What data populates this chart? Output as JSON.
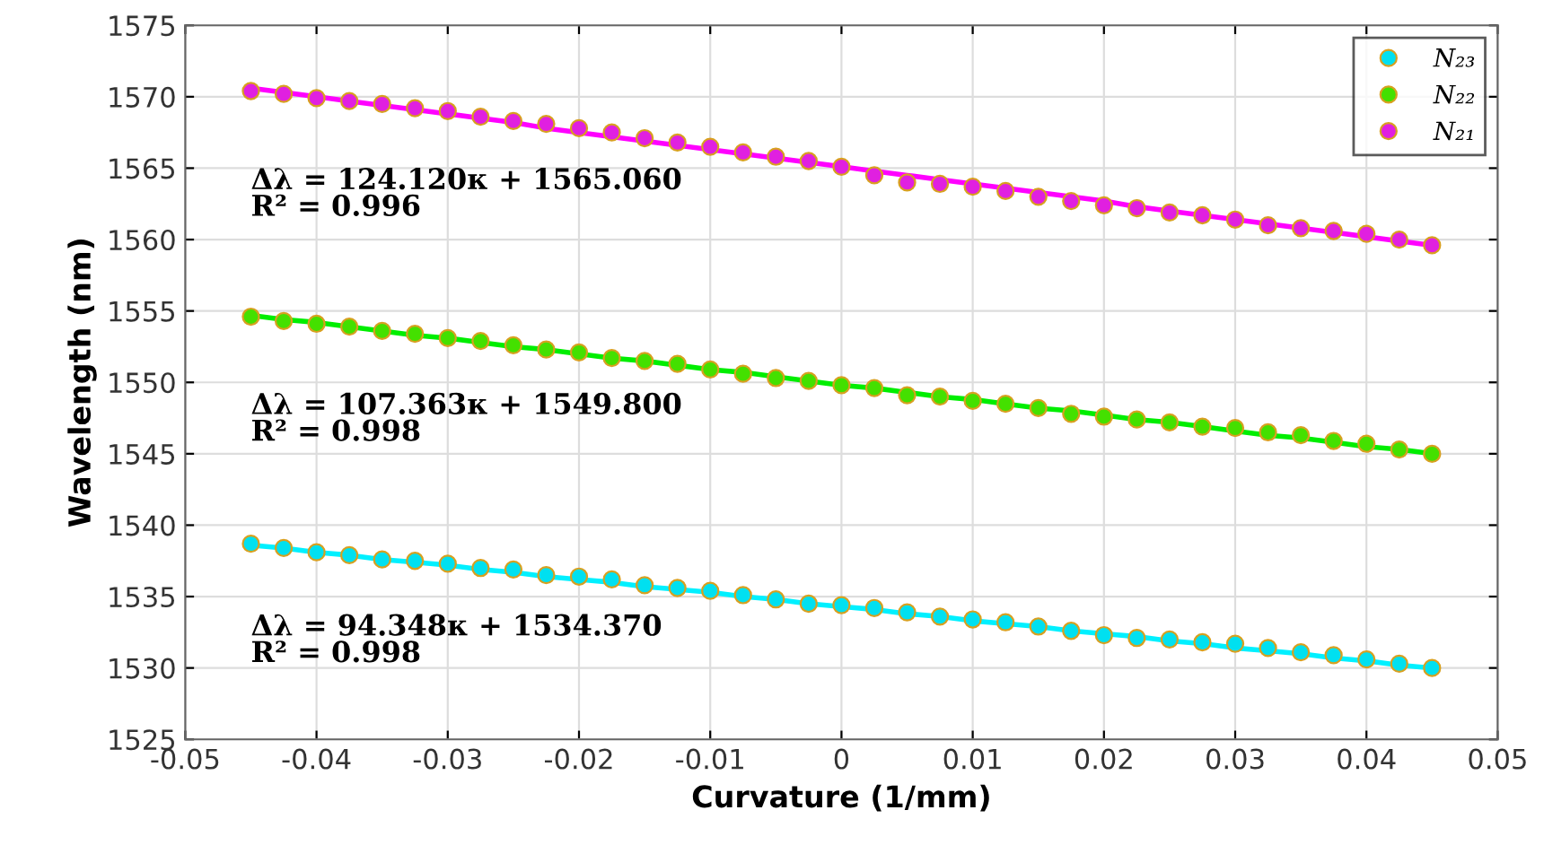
{
  "chart_data": {
    "type": "scatter",
    "xlabel": "Curvature (1/mm)",
    "ylabel": "Wavelength (nm)",
    "xlim": [
      -0.05,
      0.05
    ],
    "xticks": [
      -0.05,
      -0.04,
      -0.03,
      -0.02,
      -0.01,
      0,
      0.01,
      0.02,
      0.03,
      0.04,
      0.05
    ],
    "ylim": [
      1525,
      1575
    ],
    "yticks": [
      1525,
      1530,
      1535,
      1540,
      1545,
      1550,
      1555,
      1560,
      1565,
      1570,
      1575
    ],
    "grid": true,
    "legend": "top right",
    "x": [
      -0.045,
      -0.0425,
      -0.04,
      -0.0375,
      -0.035,
      -0.0325,
      -0.03,
      -0.0275,
      -0.025,
      -0.0225,
      -0.02,
      -0.0175,
      -0.015,
      -0.0125,
      -0.01,
      -0.0075,
      -0.005,
      -0.0025,
      0,
      0.0025,
      0.005,
      0.0075,
      0.01,
      0.0125,
      0.015,
      0.0175,
      0.02,
      0.0225,
      0.025,
      0.0275,
      0.03,
      0.0325,
      0.035,
      0.0375,
      0.04,
      0.0425,
      0.045
    ],
    "series": [
      {
        "name": "N₂₃",
        "color": "#00e0f0",
        "marker": "circle",
        "values": [
          1538.7,
          1538.4,
          1538.1,
          1537.9,
          1537.6,
          1537.5,
          1537.3,
          1537.0,
          1536.9,
          1536.5,
          1536.4,
          1536.2,
          1535.8,
          1535.6,
          1535.4,
          1535.1,
          1534.8,
          1534.5,
          1534.4,
          1534.2,
          1533.9,
          1533.6,
          1533.4,
          1533.2,
          1532.9,
          1532.6,
          1532.3,
          1532.1,
          1532.0,
          1531.8,
          1531.7,
          1531.4,
          1531.1,
          1530.9,
          1530.6,
          1530.3,
          1530.0
        ]
      },
      {
        "name": "N₂₂",
        "color": "#44e000",
        "marker": "circle",
        "values": [
          1554.6,
          1554.3,
          1554.1,
          1553.9,
          1553.6,
          1553.4,
          1553.1,
          1552.9,
          1552.6,
          1552.3,
          1552.1,
          1551.7,
          1551.5,
          1551.3,
          1550.9,
          1550.6,
          1550.3,
          1550.1,
          1549.8,
          1549.6,
          1549.1,
          1549.0,
          1548.7,
          1548.5,
          1548.2,
          1547.8,
          1547.6,
          1547.4,
          1547.2,
          1546.9,
          1546.8,
          1546.5,
          1546.3,
          1545.9,
          1545.7,
          1545.3,
          1545.0
        ]
      },
      {
        "name": "N₂₁",
        "color": "#e020e0",
        "marker": "circle",
        "values": [
          1570.4,
          1570.2,
          1569.9,
          1569.7,
          1569.5,
          1569.2,
          1569.0,
          1568.6,
          1568.3,
          1568.1,
          1567.8,
          1567.5,
          1567.1,
          1566.8,
          1566.5,
          1566.1,
          1565.8,
          1565.5,
          1565.1,
          1564.5,
          1564.0,
          1563.9,
          1563.7,
          1563.4,
          1563.0,
          1562.7,
          1562.4,
          1562.2,
          1561.9,
          1561.7,
          1561.4,
          1561.0,
          1560.8,
          1560.6,
          1560.4,
          1560.0,
          1559.6
        ]
      },
      {
        "type": "line",
        "color": "#00f0ff",
        "values": [
          1538.6,
          1538.4,
          1538.1,
          1537.9,
          1537.6,
          1537.4,
          1537.2,
          1536.9,
          1536.7,
          1536.4,
          1536.2,
          1536.0,
          1535.7,
          1535.5,
          1535.3,
          1535.0,
          1534.8,
          1534.5,
          1534.3,
          1534.1,
          1533.8,
          1533.6,
          1533.3,
          1533.1,
          1532.9,
          1532.6,
          1532.4,
          1532.2,
          1531.9,
          1531.7,
          1531.4,
          1531.2,
          1531.0,
          1530.7,
          1530.5,
          1530.2,
          1530.0
        ]
      },
      {
        "type": "line",
        "color": "#00ee00",
        "values": [
          1554.7,
          1554.4,
          1554.2,
          1553.9,
          1553.6,
          1553.3,
          1553.1,
          1552.8,
          1552.5,
          1552.3,
          1552.0,
          1551.7,
          1551.5,
          1551.2,
          1550.9,
          1550.7,
          1550.4,
          1550.1,
          1549.8,
          1549.6,
          1549.3,
          1549.0,
          1548.8,
          1548.5,
          1548.2,
          1548.0,
          1547.7,
          1547.4,
          1547.2,
          1546.9,
          1546.6,
          1546.3,
          1546.1,
          1545.8,
          1545.5,
          1545.3,
          1545.0
        ]
      },
      {
        "type": "line",
        "color": "#ff00ff",
        "values": [
          1570.6,
          1570.3,
          1570.0,
          1569.7,
          1569.4,
          1569.1,
          1568.8,
          1568.5,
          1568.2,
          1567.8,
          1567.5,
          1567.2,
          1566.9,
          1566.6,
          1566.3,
          1566.0,
          1565.7,
          1565.4,
          1565.1,
          1564.8,
          1564.5,
          1564.2,
          1563.9,
          1563.6,
          1563.3,
          1563.0,
          1562.7,
          1562.3,
          1562.0,
          1561.7,
          1561.4,
          1561.1,
          1560.8,
          1560.5,
          1560.2,
          1559.9,
          1559.6
        ]
      }
    ],
    "annotations": [
      "Δλ = 124.120κ + 1565.060\nR² = 0.996",
      "Δλ = 107.363κ + 1549.800\nR² = 0.998",
      "Δλ = 94.348κ + 1534.370\nR² = 0.998"
    ]
  }
}
